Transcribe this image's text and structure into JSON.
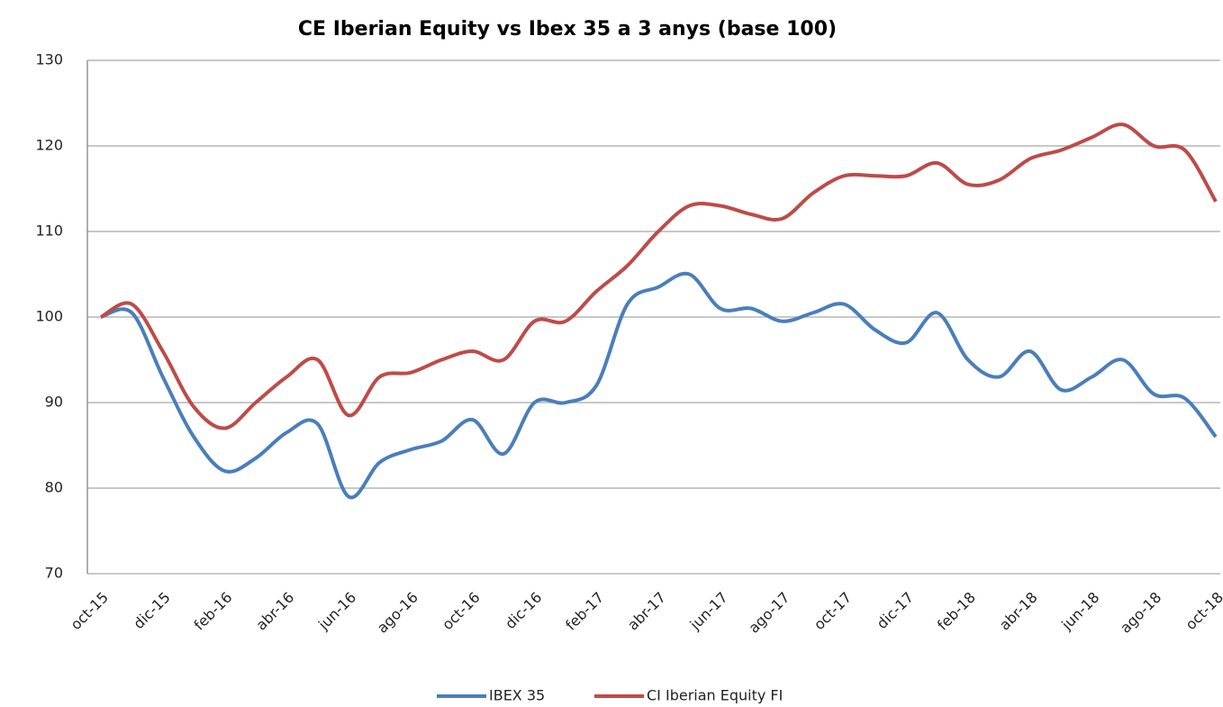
{
  "chart_data": {
    "type": "line",
    "title": "CE Iberian Equity vs Ibex 35 a 3 anys (base 100)",
    "categories": [
      "oct-15",
      null,
      "dic-15",
      null,
      "feb-16",
      null,
      "abr-16",
      null,
      "jun-16",
      null,
      "ago-16",
      null,
      "oct-16",
      null,
      "dic-16",
      null,
      "feb-17",
      null,
      "abr-17",
      null,
      "jun-17",
      null,
      "ago-17",
      null,
      "oct-17",
      null,
      "dic-17",
      null,
      "feb-18",
      null,
      "abr-18",
      null,
      "jun-18",
      null,
      "ago-18",
      null,
      "oct-18"
    ],
    "series": [
      {
        "name": "IBEX 35",
        "color": "#4a7ebb",
        "values": [
          100,
          100.5,
          93,
          86,
          82,
          83.5,
          86.5,
          87.5,
          79,
          83,
          84.5,
          85.5,
          88,
          84,
          90,
          90,
          92,
          101.5,
          103.5,
          105,
          101,
          101,
          99.5,
          100.5,
          101.5,
          98.5,
          97,
          100.5,
          95,
          93,
          96,
          91.5,
          93,
          95,
          91,
          90.5,
          86
        ]
      },
      {
        "name": "CI Iberian Equity FI",
        "color": "#be4b48",
        "values": [
          100,
          101.5,
          96,
          89.5,
          87,
          90,
          93,
          95,
          88.5,
          93,
          93.5,
          95,
          96,
          95,
          99.5,
          99.5,
          103,
          106,
          110,
          113,
          113,
          112,
          111.5,
          114.5,
          116.5,
          116.5,
          116.5,
          118,
          115.5,
          116,
          118.5,
          119.5,
          121,
          122.5,
          120,
          119.5,
          113.5
        ]
      }
    ],
    "ylim": [
      70,
      130
    ],
    "yticks": [
      70,
      80,
      90,
      100,
      110,
      120,
      130
    ],
    "grid": true,
    "legend": "bottom"
  }
}
